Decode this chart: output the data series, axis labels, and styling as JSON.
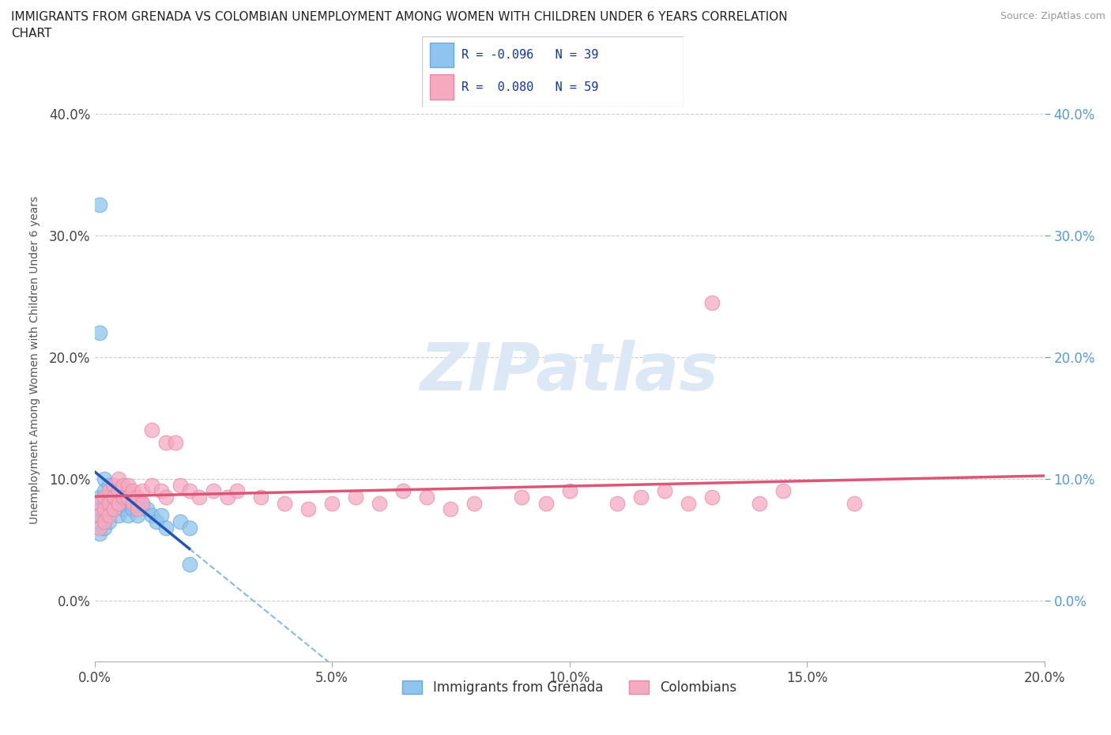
{
  "title_line1": "IMMIGRANTS FROM GRENADA VS COLOMBIAN UNEMPLOYMENT AMONG WOMEN WITH CHILDREN UNDER 6 YEARS CORRELATION",
  "title_line2": "CHART",
  "source": "Source: ZipAtlas.com",
  "ylabel": "Unemployment Among Women with Children Under 6 years",
  "xlim": [
    0.0,
    0.2
  ],
  "ylim": [
    -0.05,
    0.445
  ],
  "yticks": [
    0.0,
    0.1,
    0.2,
    0.3,
    0.4
  ],
  "xticks": [
    0.0,
    0.05,
    0.1,
    0.15,
    0.2
  ],
  "left_ytick_labels": [
    "0.0%",
    "10.0%",
    "20.0%",
    "30.0%",
    "40.0%"
  ],
  "right_ytick_labels": [
    "0.0%",
    "10.0%",
    "20.0%",
    "30.0%",
    "40.0%"
  ],
  "xtick_labels": [
    "0.0%",
    "5.0%",
    "10.0%",
    "15.0%",
    "20.0%"
  ],
  "grenada_R": -0.096,
  "grenada_N": 39,
  "colombian_R": 0.08,
  "colombian_N": 59,
  "grenada_color": "#8ec4ed",
  "colombian_color": "#f5aac0",
  "grenada_edge_color": "#6aaad8",
  "colombian_edge_color": "#e888a8",
  "grenada_line_color": "#2255bb",
  "colombian_line_color": "#dd5577",
  "dashed_line_color": "#88bbdd",
  "background_color": "#ffffff",
  "watermark_color": "#dce8f5",
  "legend_label_1": "Immigrants from Grenada",
  "legend_label_2": "Colombians",
  "grenada_x": [
    0.001,
    0.001,
    0.001,
    0.001,
    0.002,
    0.002,
    0.002,
    0.002,
    0.002,
    0.003,
    0.003,
    0.003,
    0.003,
    0.004,
    0.004,
    0.004,
    0.005,
    0.005,
    0.005,
    0.006,
    0.006,
    0.007,
    0.007,
    0.007,
    0.008,
    0.008,
    0.009,
    0.009,
    0.01,
    0.011,
    0.012,
    0.013,
    0.014,
    0.015,
    0.018,
    0.02,
    0.001,
    0.001,
    0.02
  ],
  "grenada_y": [
    0.085,
    0.075,
    0.065,
    0.055,
    0.1,
    0.09,
    0.08,
    0.07,
    0.06,
    0.095,
    0.085,
    0.075,
    0.065,
    0.095,
    0.085,
    0.075,
    0.09,
    0.08,
    0.07,
    0.085,
    0.075,
    0.09,
    0.08,
    0.07,
    0.085,
    0.075,
    0.08,
    0.07,
    0.08,
    0.075,
    0.07,
    0.065,
    0.07,
    0.06,
    0.065,
    0.06,
    0.325,
    0.22,
    0.03
  ],
  "colombian_x": [
    0.001,
    0.001,
    0.001,
    0.002,
    0.002,
    0.002,
    0.003,
    0.003,
    0.003,
    0.004,
    0.004,
    0.004,
    0.005,
    0.005,
    0.005,
    0.006,
    0.006,
    0.007,
    0.007,
    0.008,
    0.008,
    0.009,
    0.009,
    0.01,
    0.01,
    0.012,
    0.012,
    0.014,
    0.015,
    0.015,
    0.017,
    0.018,
    0.02,
    0.022,
    0.025,
    0.028,
    0.03,
    0.035,
    0.04,
    0.045,
    0.05,
    0.055,
    0.06,
    0.065,
    0.07,
    0.075,
    0.08,
    0.09,
    0.095,
    0.1,
    0.11,
    0.115,
    0.12,
    0.125,
    0.13,
    0.14,
    0.145,
    0.16,
    0.13
  ],
  "colombian_y": [
    0.08,
    0.07,
    0.06,
    0.085,
    0.075,
    0.065,
    0.09,
    0.08,
    0.07,
    0.095,
    0.085,
    0.075,
    0.1,
    0.09,
    0.08,
    0.095,
    0.085,
    0.095,
    0.085,
    0.09,
    0.08,
    0.085,
    0.075,
    0.09,
    0.08,
    0.14,
    0.095,
    0.09,
    0.13,
    0.085,
    0.13,
    0.095,
    0.09,
    0.085,
    0.09,
    0.085,
    0.09,
    0.085,
    0.08,
    0.075,
    0.08,
    0.085,
    0.08,
    0.09,
    0.085,
    0.075,
    0.08,
    0.085,
    0.08,
    0.09,
    0.08,
    0.085,
    0.09,
    0.08,
    0.085,
    0.08,
    0.09,
    0.08,
    0.245
  ]
}
